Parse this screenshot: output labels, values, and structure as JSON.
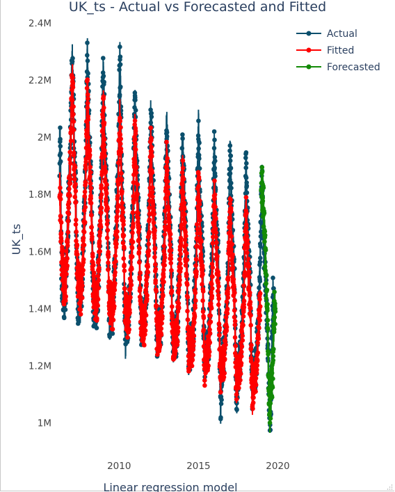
{
  "chart_data": {
    "type": "line",
    "title": "UK_ts - Actual vs Forecasted and Fitted",
    "xlabel": "Linear regression model",
    "ylabel": "UK_ts",
    "x_ticks": [
      {
        "value": 2010,
        "label": "2010"
      },
      {
        "value": 2015,
        "label": "2015"
      },
      {
        "value": 2020,
        "label": "2020"
      }
    ],
    "y_ticks": [
      {
        "value": 1000000,
        "label": "1M"
      },
      {
        "value": 1200000,
        "label": "1.2M"
      },
      {
        "value": 1400000,
        "label": "1.4M"
      },
      {
        "value": 1600000,
        "label": "1.6M"
      },
      {
        "value": 1800000,
        "label": "1.8M"
      },
      {
        "value": 2000000,
        "label": "2M"
      },
      {
        "value": 2200000,
        "label": "2.2M"
      },
      {
        "value": 2400000,
        "label": "2.4M"
      }
    ],
    "xlim": [
      2006.0,
      2020.9
    ],
    "ylim": [
      950000,
      2400000
    ],
    "grid": false,
    "legend_position": "top-right",
    "series": [
      {
        "name": "Actual",
        "color": "#0b4f6c",
        "x_start": 2006.25,
        "x_end": 2019.75,
        "trend_start": 1760000,
        "trend_end": 1380000,
        "amp_start": 330000,
        "amp_end": 250000,
        "period": 1.0,
        "peaks": [
          [
            2006.3,
            2060000
          ],
          [
            2007.05,
            2290000
          ],
          [
            2008.0,
            2320000
          ],
          [
            2009.0,
            2270000
          ],
          [
            2010.05,
            2320000
          ],
          [
            2011.0,
            2140000
          ],
          [
            2012.0,
            2110000
          ],
          [
            2013.0,
            2080000
          ],
          [
            2014.0,
            2010000
          ],
          [
            2015.0,
            2080000
          ],
          [
            2016.0,
            2000000
          ],
          [
            2017.0,
            1990000
          ],
          [
            2018.0,
            1950000
          ],
          [
            2019.0,
            1920000
          ],
          [
            2019.7,
            1480000
          ]
        ],
        "troughs": [
          [
            2006.4,
            1440000
          ],
          [
            2007.4,
            1400000
          ],
          [
            2008.4,
            1390000
          ],
          [
            2009.4,
            1330000
          ],
          [
            2010.4,
            1270000
          ],
          [
            2011.4,
            1320000
          ],
          [
            2012.4,
            1280000
          ],
          [
            2013.4,
            1250000
          ],
          [
            2014.4,
            1180000
          ],
          [
            2015.4,
            1170000
          ],
          [
            2016.4,
            1000000
          ],
          [
            2017.4,
            1040000
          ],
          [
            2018.4,
            1050000
          ],
          [
            2019.5,
            970000
          ]
        ]
      },
      {
        "name": "Fitted",
        "color": "#ff0000",
        "x_start": 2006.25,
        "x_end": 2018.9,
        "trend_start": 1740000,
        "trend_end": 1330000,
        "amp_start": 290000,
        "amp_end": 210000,
        "period": 1.0,
        "peaks": [
          [
            2007.05,
            2240000
          ],
          [
            2008.0,
            2200000
          ],
          [
            2009.0,
            2150000
          ],
          [
            2010.05,
            2110000
          ],
          [
            2011.0,
            2070000
          ],
          [
            2012.0,
            2010000
          ],
          [
            2013.0,
            1970000
          ],
          [
            2014.0,
            1920000
          ],
          [
            2015.0,
            1880000
          ],
          [
            2016.0,
            1840000
          ],
          [
            2017.0,
            1800000
          ],
          [
            2018.0,
            1780000
          ]
        ],
        "troughs": [
          [
            2007.4,
            1500000
          ],
          [
            2008.4,
            1450000
          ],
          [
            2009.4,
            1400000
          ],
          [
            2010.4,
            1370000
          ],
          [
            2011.4,
            1320000
          ],
          [
            2012.4,
            1270000
          ],
          [
            2013.4,
            1240000
          ],
          [
            2014.4,
            1200000
          ],
          [
            2015.4,
            1160000
          ],
          [
            2016.4,
            1130000
          ],
          [
            2017.4,
            1090000
          ],
          [
            2018.4,
            1050000
          ]
        ]
      },
      {
        "name": "Forecasted",
        "color": "#138a07",
        "x_start": 2018.95,
        "x_end": 2019.85,
        "trend_start": 1560000,
        "trend_end": 1250000,
        "amp_start": 280000,
        "amp_end": 220000,
        "period": 1.0,
        "peaks": [
          [
            2019.0,
            1840000
          ],
          [
            2019.8,
            1440000
          ]
        ],
        "troughs": [
          [
            2019.5,
            1000000
          ]
        ]
      }
    ]
  }
}
